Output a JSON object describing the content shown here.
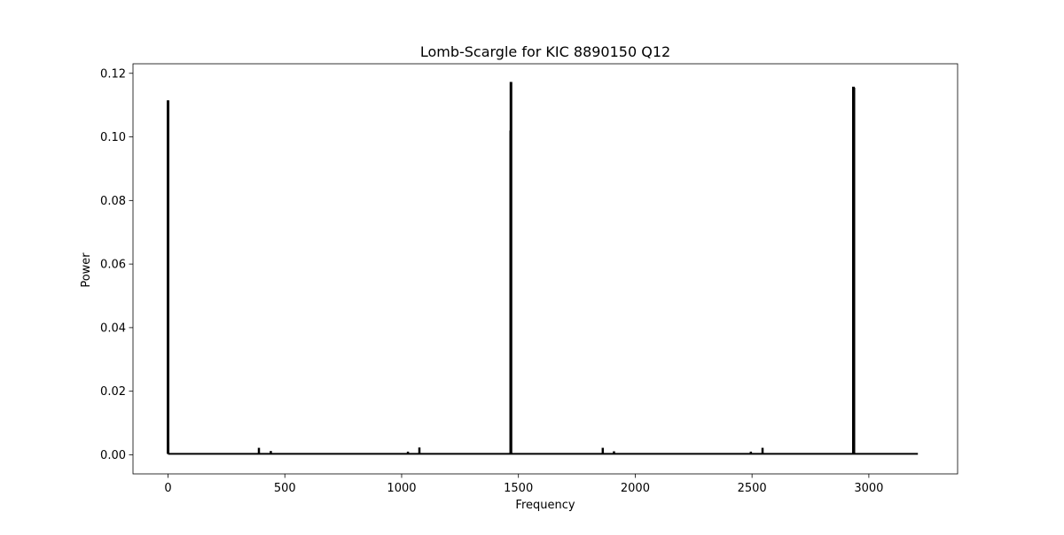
{
  "chart_data": {
    "type": "line",
    "title": "Lomb-Scargle for KIC 8890150 Q12",
    "xlabel": "Frequency",
    "ylabel": "Power",
    "xlim": [
      -150,
      3380
    ],
    "ylim": [
      -0.006,
      0.123
    ],
    "xticks": [
      0,
      500,
      1000,
      1500,
      2000,
      2500,
      3000
    ],
    "yticks": [
      0.0,
      0.02,
      0.04,
      0.06,
      0.08,
      0.1,
      0.12
    ],
    "ytick_labels": [
      "0.00",
      "0.02",
      "0.04",
      "0.06",
      "0.08",
      "0.10",
      "0.12"
    ],
    "grid": false,
    "legend": "none",
    "line_color": "#000000",
    "x_range": [
      0,
      3210
    ],
    "baseline": 0.0003,
    "peaks": [
      {
        "x": 0,
        "y": 0.1115
      },
      {
        "x": 1,
        "y": 0.004
      },
      {
        "x": 389,
        "y": 0.0022
      },
      {
        "x": 440,
        "y": 0.0012
      },
      {
        "x": 1027,
        "y": 0.001
      },
      {
        "x": 1076,
        "y": 0.0023
      },
      {
        "x": 1467,
        "y": 0.102
      },
      {
        "x": 1468,
        "y": 0.1173
      },
      {
        "x": 1861,
        "y": 0.0022
      },
      {
        "x": 1909,
        "y": 0.0011
      },
      {
        "x": 2495,
        "y": 0.001
      },
      {
        "x": 2545,
        "y": 0.0022
      },
      {
        "x": 2934,
        "y": 0.1158
      },
      {
        "x": 2936,
        "y": 0.1155
      }
    ]
  }
}
